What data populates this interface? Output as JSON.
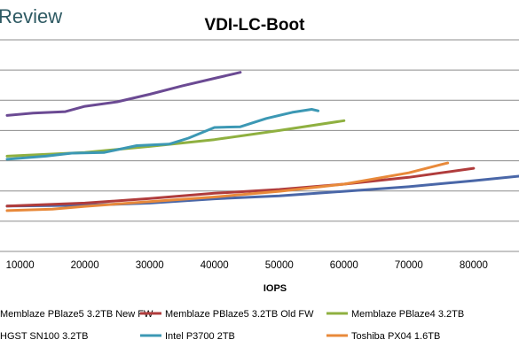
{
  "brand": "Review",
  "chart_data": {
    "type": "line",
    "title": "VDI-LC-Boot",
    "xlabel": "IOPS",
    "ylabel": "",
    "xlim": [
      8000,
      87000
    ],
    "x_ticks": [
      10000,
      20000,
      30000,
      40000,
      50000,
      60000,
      70000,
      80000
    ],
    "x_tick_labels": [
      "10000",
      "20000",
      "30000",
      "40000",
      "50000",
      "60000",
      "70000",
      "80000"
    ],
    "y_gridline_count": 7,
    "grid": true,
    "legend_position": "bottom",
    "series": [
      {
        "name": "Memblaze PBlaze5 3.2TB New FW",
        "color": "#4a67a8",
        "x": [
          8000,
          20000,
          30000,
          40000,
          50000,
          60000,
          70000,
          80000,
          87000
        ],
        "y": [
          3.0,
          3.05,
          3.2,
          3.48,
          3.68,
          3.98,
          4.28,
          4.68,
          4.98
        ]
      },
      {
        "name": "Memblaze PBlaze5 3.2TB Old FW",
        "color": "#b03c3c",
        "x": [
          8000,
          20000,
          30000,
          40000,
          50000,
          60000,
          70000,
          75000,
          80000
        ],
        "y": [
          3.0,
          3.2,
          3.5,
          3.85,
          4.1,
          4.45,
          4.9,
          5.2,
          5.5
        ]
      },
      {
        "name": "Memblaze PBlaze4 3.2TB",
        "color": "#8fb040",
        "x": [
          8000,
          20000,
          30000,
          40000,
          50000,
          60000
        ],
        "y": [
          6.3,
          6.55,
          6.95,
          7.4,
          8.0,
          8.65
        ]
      },
      {
        "name": "HGST SN100 3.2TB",
        "color": "#6b4a93",
        "x": [
          8000,
          12000,
          17000,
          20000,
          25000,
          30000,
          35000,
          40000,
          43000,
          44000
        ],
        "y": [
          9.0,
          9.15,
          9.25,
          9.6,
          9.9,
          10.4,
          10.95,
          11.45,
          11.75,
          11.85
        ]
      },
      {
        "name": "Intel P3700 2TB",
        "color": "#3c98b4",
        "x": [
          8000,
          14000,
          18000,
          23000,
          28000,
          33000,
          36000,
          40000,
          44000,
          48000,
          52000,
          55000,
          56000
        ],
        "y": [
          6.1,
          6.3,
          6.5,
          6.55,
          7.0,
          7.1,
          7.5,
          8.2,
          8.25,
          8.8,
          9.2,
          9.4,
          9.3
        ]
      },
      {
        "name": "Toshiba PX04 1.6TB",
        "color": "#e8893a",
        "x": [
          8000,
          15000,
          20000,
          30000,
          40000,
          50000,
          60000,
          70000,
          75000,
          76000
        ],
        "y": [
          2.7,
          2.8,
          2.98,
          3.3,
          3.6,
          3.98,
          4.45,
          5.2,
          5.75,
          5.85
        ]
      }
    ]
  }
}
